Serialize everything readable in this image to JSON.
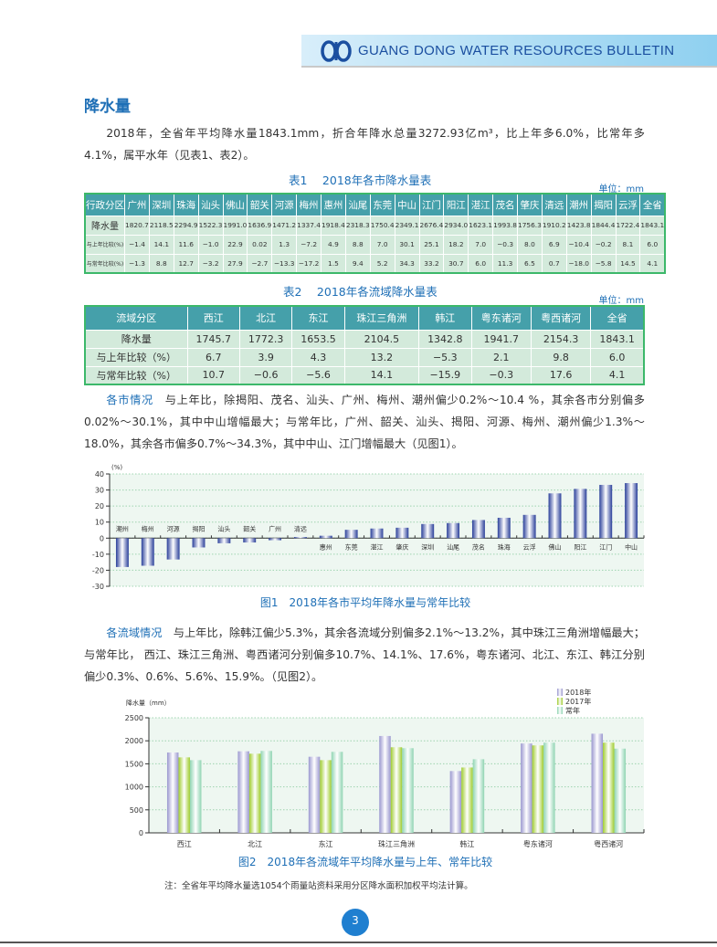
{
  "header": {
    "title": "GUANG DONG WATER RESOURCES BULLETIN",
    "logo": "water-resources-logo"
  },
  "section_title": "降水量",
  "para1": "2018年，全省年平均降水量1843.1mm，折合年降水总量3272.93亿m³，比上年多6.0%，比常年多4.1%，属平水年（见表1、表2）。",
  "table1": {
    "caption": "表1　 2018年各市降水量表",
    "unit": "单位：mm",
    "header": [
      "行政分区",
      "广州",
      "深圳",
      "珠海",
      "汕头",
      "佛山",
      "韶关",
      "河源",
      "梅州",
      "惠州",
      "汕尾",
      "东莞",
      "中山",
      "江门",
      "阳江",
      "湛江",
      "茂名",
      "肇庆",
      "清远",
      "潮州",
      "揭阳",
      "云浮",
      "全省"
    ],
    "rows": [
      [
        "降水量",
        "1820.7",
        "2118.5",
        "2294.9",
        "1522.3",
        "1991.0",
        "1636.9",
        "1471.2",
        "1337.4",
        "1918.4",
        "2318.3",
        "1750.4",
        "2349.1",
        "2676.4",
        "2934.0",
        "1623.1",
        "1993.8",
        "1756.3",
        "1910.2",
        "1423.8",
        "1844.4",
        "1722.4",
        "1843.1"
      ],
      [
        "与上年比较(%)",
        "−1.4",
        "14.1",
        "11.6",
        "−1.0",
        "22.9",
        "0.02",
        "1.3",
        "−7.2",
        "4.9",
        "8.8",
        "7.0",
        "30.1",
        "25.1",
        "18.2",
        "7.0",
        "−0.3",
        "8.0",
        "6.9",
        "−10.4",
        "−0.2",
        "8.1",
        "6.0"
      ],
      [
        "与常年比较(%)",
        "−1.3",
        "8.8",
        "12.7",
        "−3.2",
        "27.9",
        "−2.7",
        "−13.3",
        "−17.2",
        "1.5",
        "9.4",
        "5.2",
        "34.3",
        "33.2",
        "30.7",
        "6.0",
        "11.3",
        "6.5",
        "0.7",
        "−18.0",
        "−5.8",
        "14.5",
        "4.1"
      ]
    ]
  },
  "table2": {
    "caption": "表2　 2018年各流域降水量表",
    "unit": "单位：mm",
    "header": [
      "流域分区",
      "西江",
      "北江",
      "东江",
      "珠江三角洲",
      "韩江",
      "粤东诸河",
      "粤西诸河",
      "全省"
    ],
    "rows": [
      [
        "降水量",
        "1745.7",
        "1772.3",
        "1653.5",
        "2104.5",
        "1342.8",
        "1941.7",
        "2154.3",
        "1843.1"
      ],
      [
        "与上年比较（%）",
        "6.7",
        "3.9",
        "4.3",
        "13.2",
        "−5.3",
        "2.1",
        "9.8",
        "6.0"
      ],
      [
        "与常年比较（%）",
        "10.7",
        "−0.6",
        "−5.6",
        "14.1",
        "−15.9",
        "−0.3",
        "17.6",
        "4.1"
      ]
    ]
  },
  "para2": {
    "lead": "各市情况",
    "body": "　与上年比，除揭阳、茂名、汕头、广州、梅州、潮州偏少0.2%～10.4 %，其余各市分别偏多0.02%～30.1%，其中中山增幅最大；与常年比，广州、韶关、汕头、揭阳、河源、梅州、潮州偏少1.3%～18.0%，其余各市偏多0.7%～34.3%，其中中山、江门增幅最大（见图1）。"
  },
  "para3": {
    "lead": "各流域情况",
    "body": "　与上年比，除韩江偏少5.3%，其余各流域分别偏多2.1%～13.2%，其中珠江三角洲增幅最大；与常年比， 西江、珠江三角洲、粤西诸河分别偏多10.7%、14.1%、17.6%，粤东诸河、北江、东江、韩江分别偏少0.3%、0.6%、5.6%、15.9%。（见图2）。"
  },
  "chart_data": [
    {
      "type": "bar",
      "title": "图1　2018年各市平均年降水量与常年比较",
      "ylabel": "(%)",
      "ylim": [
        -30,
        40
      ],
      "yticks": [
        40,
        30,
        20,
        10,
        0,
        -10,
        -20,
        -30
      ],
      "grid": true,
      "categories": [
        "潮州",
        "梅州",
        "河源",
        "揭阳",
        "汕头",
        "韶关",
        "广州",
        "清远",
        "惠州",
        "东莞",
        "湛江",
        "肇庆",
        "深圳",
        "汕尾",
        "茂名",
        "珠海",
        "云浮",
        "佛山",
        "阳江",
        "江门",
        "中山"
      ],
      "values": [
        -18.0,
        -17.2,
        -13.3,
        -5.8,
        -3.2,
        -2.7,
        -1.3,
        0.7,
        1.5,
        5.2,
        6.0,
        6.5,
        8.8,
        9.4,
        11.3,
        12.7,
        14.5,
        27.9,
        30.7,
        33.2,
        34.3
      ],
      "color": "#2a3f9a"
    },
    {
      "type": "bar",
      "title": "图2　2018年各流域年平均降水量与上年、常年比较",
      "ylabel": "降水量（mm）",
      "ylim": [
        0,
        2500
      ],
      "yticks": [
        2500,
        2000,
        1500,
        1000,
        500,
        0
      ],
      "grid": true,
      "legend": "top-right",
      "categories": [
        "西江",
        "北江",
        "东江",
        "珠江三角洲",
        "韩江",
        "粤东诸河",
        "粤西诸河"
      ],
      "series": [
        {
          "name": "2018年",
          "values": [
            1745.7,
            1772.3,
            1653.5,
            2104.5,
            1342.8,
            1941.7,
            2154.3
          ],
          "color": "#9a97cf"
        },
        {
          "name": "2017年",
          "values": [
            1640,
            1720,
            1580,
            1860,
            1420,
            1900,
            1960
          ],
          "color": "#9fcc2e"
        },
        {
          "name": "常年",
          "values": [
            1580,
            1780,
            1760,
            1840,
            1600,
            1960,
            1830
          ],
          "color": "#8fd4b2"
        }
      ]
    }
  ],
  "note": "注：全省年平均降水量选1054个雨量站资料采用分区降水面积加权平均法计算。",
  "page_number": "3"
}
